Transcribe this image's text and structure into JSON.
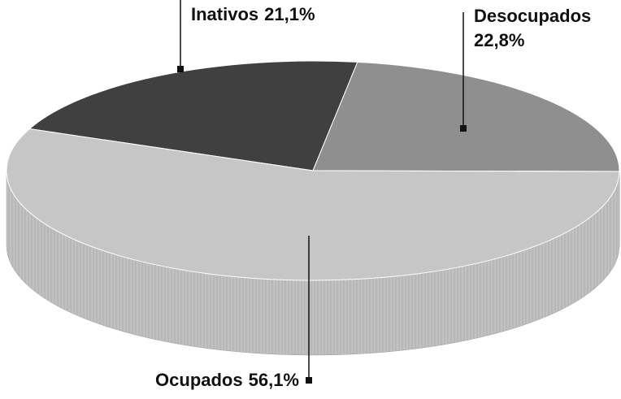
{
  "chart_data": {
    "type": "pie",
    "categories": [
      "Inativos",
      "Desocupados",
      "Ocupados"
    ],
    "values": [
      21.1,
      22.8,
      56.1
    ],
    "value_labels": [
      "21,1%",
      "22,8%",
      "56,1%"
    ],
    "colors": [
      "#404040",
      "#8f8f8f",
      "#c6c6c6"
    ],
    "side_colors": [
      "#2e2e2e",
      "#7a7a7a",
      "#b8b8b8"
    ]
  }
}
